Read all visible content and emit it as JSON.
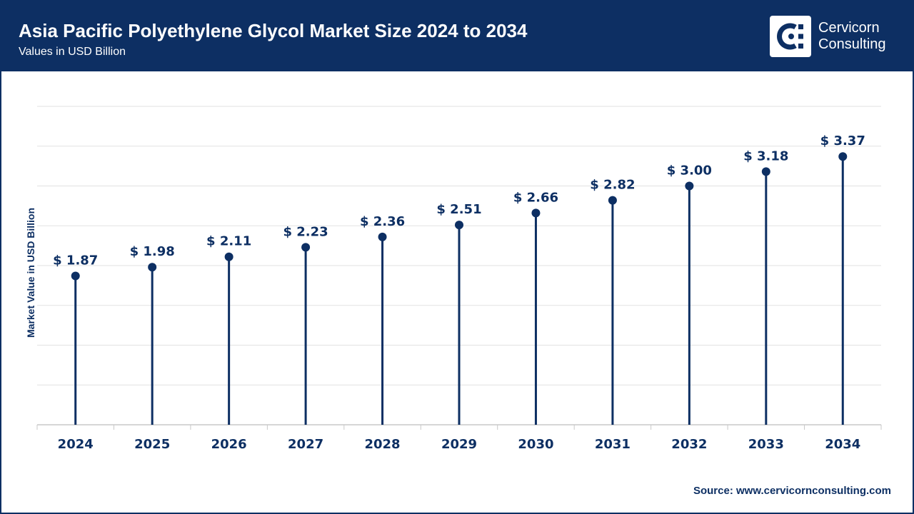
{
  "header": {
    "title": "Asia Pacific Polyethylene Glycol Market Size 2024 to 2034",
    "subtitle": "Values in USD Billion",
    "logo_line1": "Cervicorn",
    "logo_line2": "Consulting"
  },
  "footer": {
    "source_label": "Source:",
    "source_url": "www.cervicornconsulting.com"
  },
  "colors": {
    "brand": "#0d2f63",
    "grid": "#e2e2e2",
    "axis": "#c8c8c8"
  },
  "chart_data": {
    "type": "lollipop",
    "title": "Asia Pacific Polyethylene Glycol Market Size 2024 to 2034",
    "subtitle": "Values in USD Billion",
    "ylabel": "Market Value in USD Billion",
    "xlabel": "",
    "value_prefix": "$ ",
    "categories": [
      "2024",
      "2025",
      "2026",
      "2027",
      "2028",
      "2029",
      "2030",
      "2031",
      "2032",
      "2033",
      "2034"
    ],
    "values": [
      1.87,
      1.98,
      2.11,
      2.23,
      2.36,
      2.51,
      2.66,
      2.82,
      3.0,
      3.18,
      3.37
    ],
    "labels": [
      "$ 1.87",
      "$ 1.98",
      "$ 2.11",
      "$ 2.23",
      "$ 2.36",
      "$ 2.51",
      "$ 2.66",
      "$ 2.82",
      "$ 3.00",
      "$ 3.18",
      "$ 3.37"
    ],
    "ylim": [
      0,
      4.0
    ],
    "gridlines": [
      0.5,
      1.0,
      1.5,
      2.0,
      2.5,
      3.0,
      3.5,
      4.0
    ],
    "grid": true,
    "legend": "none"
  }
}
